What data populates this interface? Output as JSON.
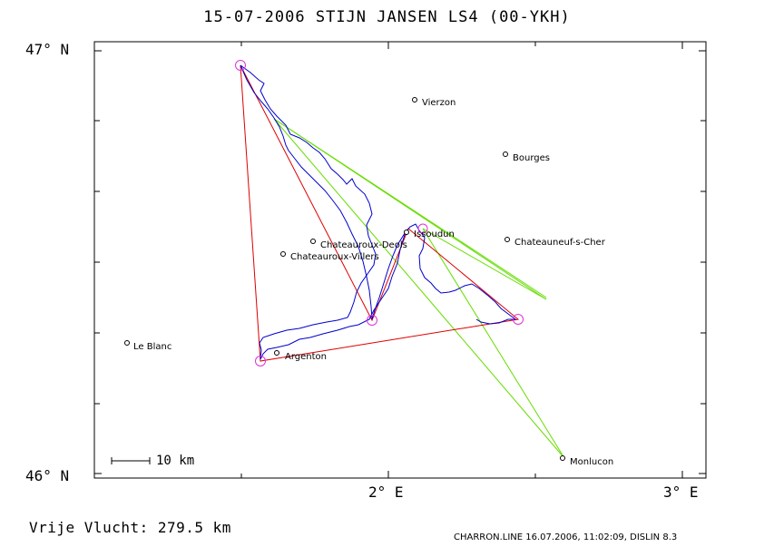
{
  "title": "15-07-2006   STIJN JANSEN   LS4 (00-YKH)",
  "axes": {
    "lat_top": "47° N",
    "lat_bottom": "46° N",
    "lon_2": "2° E",
    "lon_3": "3° E"
  },
  "scale_label": "10 km",
  "distance_label": "Vrije Vlucht:  279.5 km",
  "footer": "CHARRON.LINE 16.07.2006, 11:02:09, DISLIN 8.3",
  "towns": [
    {
      "name": "Vierzon"
    },
    {
      "name": "Bourges"
    },
    {
      "name": "Issoudun"
    },
    {
      "name": "Chateauroux-Deols"
    },
    {
      "name": "Chateauroux-Villers"
    },
    {
      "name": "Chateauneuf-s-Cher"
    },
    {
      "name": "Le Blanc"
    },
    {
      "name": "Argenton"
    },
    {
      "name": "Monlucon"
    }
  ],
  "colors": {
    "track": "#0000cc",
    "task": "#dd0000",
    "alt_lines": "#66dd00",
    "turnpoint": "#dd33dd",
    "frame": "#000000"
  }
}
